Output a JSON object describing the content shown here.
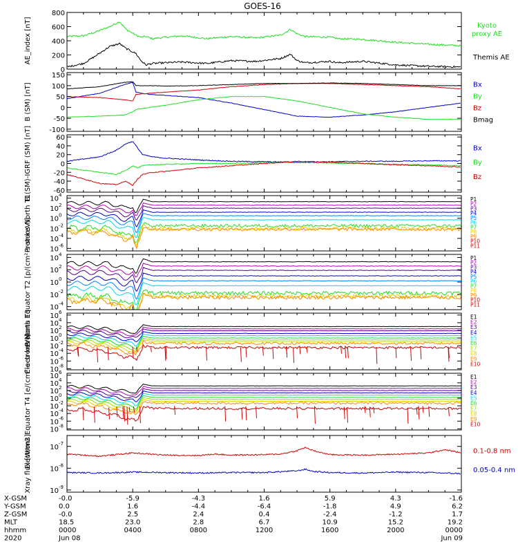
{
  "title": "GOES-16",
  "colors": {
    "black": "#000000",
    "red": "#d00000",
    "green": "#22dd22",
    "blue": "#0000c8",
    "cyan": "#00d8e8",
    "magenta": "#b000b0",
    "purple": "#500090",
    "yellow": "#e0d000",
    "orange": "#ff8800"
  },
  "chart_data": [
    {
      "type": "line",
      "ylabel": "AE_index [nT]",
      "yticks": [
        "800",
        "600",
        "400",
        "200",
        "0"
      ],
      "ylim": [
        0,
        800
      ],
      "scale": "linear",
      "series": [
        {
          "name": "Kyoto proxy AE",
          "color": "#22dd22",
          "x": [
            0,
            1,
            1.7,
            2.6,
            3.2,
            3.6,
            4.2,
            4.5,
            4.8,
            5.2,
            6,
            7,
            8.5,
            10,
            11.5,
            13,
            13.6,
            14,
            14.5,
            16,
            16.5,
            18,
            20,
            22,
            24
          ],
          "y": [
            460,
            470,
            520,
            600,
            670,
            560,
            480,
            450,
            460,
            430,
            450,
            470,
            430,
            460,
            440,
            480,
            560,
            500,
            460,
            450,
            430,
            420,
            380,
            350,
            330
          ]
        },
        {
          "name": "Themis AE",
          "color": "#000000",
          "x": [
            0,
            1,
            1.7,
            2.6,
            3.2,
            3.6,
            4.2,
            4.5,
            4.8,
            5.2,
            6,
            7,
            8.5,
            10,
            11.5,
            13,
            13.6,
            14,
            14.5,
            16,
            16.5,
            18,
            20,
            22,
            24
          ],
          "y": [
            30,
            80,
            180,
            320,
            360,
            290,
            220,
            120,
            60,
            80,
            90,
            100,
            80,
            120,
            110,
            150,
            210,
            120,
            90,
            110,
            90,
            110,
            60,
            40,
            30
          ]
        }
      ],
      "legend": [
        {
          "text": "Kyoto",
          "color": "#22dd22"
        },
        {
          "text": "proxy AE",
          "color": "#22dd22"
        },
        {
          "text": "Themis AE",
          "color": "#000000"
        }
      ]
    },
    {
      "type": "line",
      "ylabel": "B (SM) [nT]",
      "yticks": [
        "150",
        "100",
        "50",
        "0",
        "-50",
        "-100"
      ],
      "ylim": [
        -110,
        160
      ],
      "scale": "linear",
      "series": [
        {
          "name": "Bx",
          "color": "#0000c8",
          "x": [
            0,
            2,
            3.5,
            4,
            4.2,
            5,
            6,
            8,
            10,
            12,
            14,
            16,
            18,
            20,
            22,
            24
          ],
          "y": [
            40,
            65,
            105,
            115,
            70,
            60,
            55,
            45,
            20,
            -10,
            -40,
            -45,
            -35,
            -20,
            0,
            20
          ]
        },
        {
          "name": "By",
          "color": "#22dd22",
          "x": [
            0,
            2,
            3.5,
            4,
            4.2,
            5,
            6,
            8,
            10,
            12,
            14,
            16,
            18,
            20,
            22,
            24
          ],
          "y": [
            -45,
            -40,
            -35,
            -20,
            -10,
            0,
            10,
            35,
            50,
            50,
            30,
            0,
            -30,
            -45,
            -55,
            -55
          ]
        },
        {
          "name": "Bz",
          "color": "#d00000",
          "x": [
            0,
            2,
            3.5,
            4,
            4.2,
            5,
            6,
            8,
            10,
            12,
            14,
            16,
            18,
            20,
            22,
            24
          ],
          "y": [
            50,
            45,
            35,
            30,
            60,
            65,
            70,
            80,
            95,
            105,
            110,
            110,
            105,
            100,
            95,
            85
          ]
        },
        {
          "name": "Bmag",
          "color": "#000000",
          "x": [
            0,
            2,
            3.5,
            4,
            4.2,
            5,
            6,
            8,
            10,
            12,
            14,
            16,
            18,
            20,
            22,
            24
          ],
          "y": [
            85,
            95,
            115,
            118,
            100,
            100,
            98,
            100,
            105,
            110,
            110,
            112,
            110,
            105,
            100,
            100
          ]
        }
      ],
      "legend": [
        {
          "text": "Bx",
          "color": "#0000c8"
        },
        {
          "text": "By",
          "color": "#22dd22"
        },
        {
          "text": "Bz",
          "color": "#d00000"
        },
        {
          "text": "Bmag",
          "color": "#000000"
        }
      ]
    },
    {
      "type": "line",
      "ylabel": "B (SM)-IGRF (SM) [nT]",
      "yticks": [
        "60",
        "40",
        "20",
        "0",
        "-20",
        "-40",
        "-60"
      ],
      "ylim": [
        -65,
        65
      ],
      "scale": "linear",
      "series": [
        {
          "name": "Bx",
          "color": "#0000c8",
          "x": [
            0,
            1,
            2,
            3,
            3.6,
            4,
            4.3,
            4.6,
            5.2,
            6,
            8,
            10,
            12,
            14,
            16,
            18,
            20,
            22,
            24
          ],
          "y": [
            5,
            10,
            15,
            30,
            45,
            50,
            35,
            20,
            15,
            12,
            8,
            5,
            4,
            3,
            4,
            5,
            5,
            6,
            6
          ]
        },
        {
          "name": "By",
          "color": "#22dd22",
          "x": [
            0,
            1,
            2,
            3,
            3.6,
            4,
            4.3,
            4.6,
            5.2,
            6,
            8,
            10,
            12,
            14,
            16,
            18,
            20,
            22,
            24
          ],
          "y": [
            -10,
            -15,
            -20,
            -25,
            -15,
            -5,
            -10,
            -5,
            -3,
            -2,
            0,
            0,
            2,
            2,
            1,
            0,
            -2,
            -3,
            -5
          ]
        },
        {
          "name": "Bz",
          "color": "#d00000",
          "x": [
            0,
            1,
            2,
            3,
            3.6,
            4,
            4.3,
            4.6,
            5.2,
            6,
            8,
            10,
            12,
            14,
            16,
            18,
            20,
            22,
            24
          ],
          "y": [
            -25,
            -35,
            -45,
            -48,
            -40,
            -50,
            -35,
            -25,
            -20,
            -18,
            -10,
            -5,
            0,
            5,
            3,
            0,
            -3,
            -5,
            -8
          ]
        }
      ],
      "legend": [
        {
          "text": "Bx",
          "color": "#0000c8"
        },
        {
          "text": "By",
          "color": "#22dd22"
        },
        {
          "text": "Bz",
          "color": "#d00000"
        }
      ]
    },
    {
      "type": "line",
      "ylabel": "Protons North T1",
      "yticks": [
        "10",
        "10",
        "10",
        "10",
        "10",
        "10"
      ],
      "ytick_exponents": [
        "4",
        "2",
        "0",
        "-2",
        "-4",
        "-6"
      ],
      "ylim": [
        -6.5,
        4.5
      ],
      "scale": "log10",
      "dip_x": [
        2.5,
        3.5,
        4.0,
        4.2,
        4.6
      ],
      "dip_y": [
        -0.5,
        -2.0,
        -1.5,
        -4.0,
        0
      ],
      "series": [
        {
          "name": "P1",
          "color": "#000000",
          "level": 3.3
        },
        {
          "name": "P2",
          "color": "#b000b0",
          "level": 2.6
        },
        {
          "name": "P3",
          "color": "#500090",
          "level": 2.0
        },
        {
          "name": "P4",
          "color": "#0000c8",
          "level": 1.2
        },
        {
          "name": "P5",
          "color": "#0080ff",
          "level": 0.5
        },
        {
          "name": "P6",
          "color": "#00d8e8",
          "level": -0.3
        },
        {
          "name": "P7",
          "color": "#22dd22",
          "level": -1.5
        },
        {
          "name": "P8",
          "color": "#e0d000",
          "level": -2.0
        },
        {
          "name": "P9",
          "color": "#ff8800",
          "level": -2.2
        },
        {
          "name": "P10",
          "color": "#d00000",
          "level": -99
        },
        {
          "name": "P11",
          "color": "#d00000",
          "level": -99
        }
      ]
    },
    {
      "type": "line",
      "ylabel": "Protons Equator T2 [p/(cm²-s-sr-keV)]",
      "yticks": [
        "10",
        "10",
        "10",
        "10",
        "10"
      ],
      "ytick_exponents": [
        "4",
        "2",
        "0",
        "-2",
        "-4"
      ],
      "ylim": [
        -4.5,
        4.5
      ],
      "scale": "log10",
      "dip_x": [
        2.5,
        3.5,
        4.0,
        4.2,
        4.6
      ],
      "dip_y": [
        -0.5,
        -1.8,
        -1.3,
        -3.5,
        0
      ],
      "series": [
        {
          "name": "P1",
          "color": "#000000",
          "level": 3.3
        },
        {
          "name": "P2",
          "color": "#b000b0",
          "level": 2.6
        },
        {
          "name": "P3",
          "color": "#500090",
          "level": 1.9
        },
        {
          "name": "P4",
          "color": "#0000c8",
          "level": 1.0
        },
        {
          "name": "P5",
          "color": "#0080ff",
          "level": 0.2
        },
        {
          "name": "P6",
          "color": "#00d8e8",
          "level": -0.6
        },
        {
          "name": "P7",
          "color": "#22dd22",
          "level": -1.8
        },
        {
          "name": "P8",
          "color": "#e0d000",
          "level": -2.3
        },
        {
          "name": "P9",
          "color": "#ff8800",
          "level": -2.5
        },
        {
          "name": "P10",
          "color": "#d00000",
          "level": -99
        },
        {
          "name": "P11",
          "color": "#d00000",
          "level": -99
        }
      ]
    },
    {
      "type": "line",
      "ylabel": "Electrons North T3",
      "yticks": [
        "10",
        "10",
        "10",
        "10",
        "10",
        "10",
        "10",
        "10"
      ],
      "ytick_exponents": [
        "6",
        "4",
        "2",
        "0",
        "-2",
        "-4",
        "-6",
        "-8"
      ],
      "ylim": [
        -8.3,
        6.5
      ],
      "scale": "log10",
      "dip_x": [
        1.2,
        2.5,
        3.5,
        4.0,
        4.2,
        4.6
      ],
      "dip_y": [
        -0.3,
        -1.0,
        -2.0,
        -2.4,
        -3.0,
        0
      ],
      "series": [
        {
          "name": "E1",
          "color": "#000000",
          "level": 3.0
        },
        {
          "name": "E2",
          "color": "#b000b0",
          "level": 2.4
        },
        {
          "name": "E3",
          "color": "#500090",
          "level": 1.9
        },
        {
          "name": "E4",
          "color": "#0000c8",
          "level": 1.2
        },
        {
          "name": "E5",
          "color": "#00d8e8",
          "level": 0.6
        },
        {
          "name": "E6",
          "color": "#22dd22",
          "level": 0.0
        },
        {
          "name": "E7",
          "color": "#9adf00",
          "level": -0.5
        },
        {
          "name": "E8",
          "color": "#e0d000",
          "level": -0.9
        },
        {
          "name": "E9",
          "color": "#ff8800",
          "level": -1.4
        },
        {
          "name": "E10",
          "color": "#d00000",
          "level": -2.5
        }
      ]
    },
    {
      "type": "line",
      "ylabel": "Electrons Equator T4 [e/(cm²-s-sr-keV)]",
      "yticks": [
        "10",
        "10",
        "10",
        "10",
        "10",
        "10",
        "10",
        "10"
      ],
      "ytick_exponents": [
        "6",
        "4",
        "2",
        "0",
        "-2",
        "-4",
        "-6",
        "-8"
      ],
      "ylim": [
        -8.3,
        6.5
      ],
      "scale": "log10",
      "dip_x": [
        1.2,
        2.5,
        3.5,
        4.0,
        4.2,
        4.6
      ],
      "dip_y": [
        -0.3,
        -1.2,
        -2.2,
        -2.5,
        -3.2,
        0
      ],
      "series": [
        {
          "name": "E1",
          "color": "#000000",
          "level": 3.2
        },
        {
          "name": "E2",
          "color": "#b000b0",
          "level": 2.6
        },
        {
          "name": "E3",
          "color": "#500090",
          "level": 2.0
        },
        {
          "name": "E4",
          "color": "#0000c8",
          "level": 1.4
        },
        {
          "name": "E5",
          "color": "#00d8e8",
          "level": 0.8
        },
        {
          "name": "E6",
          "color": "#22dd22",
          "level": 0.2
        },
        {
          "name": "E7",
          "color": "#9adf00",
          "level": -0.3
        },
        {
          "name": "E8",
          "color": "#e0d000",
          "level": -0.8
        },
        {
          "name": "E9",
          "color": "#ff8800",
          "level": -1.3
        },
        {
          "name": "E10",
          "color": "#d00000",
          "level": -2.7
        }
      ]
    },
    {
      "type": "line",
      "ylabel": "Xray flux [W/m2]",
      "yticks": [
        "10",
        "10",
        "10"
      ],
      "ytick_exponents": [
        "-7",
        "-8",
        "-9"
      ],
      "ylim": [
        -9.1,
        -6.5
      ],
      "scale": "log10",
      "series": [
        {
          "name": "0.1-0.8 nm",
          "color": "#d00000",
          "x": [
            0,
            2,
            4,
            6,
            8,
            9,
            10,
            12,
            13,
            14,
            14.5,
            15,
            16,
            18,
            20,
            22,
            23,
            24
          ],
          "y": [
            -7.35,
            -7.45,
            -7.3,
            -7.4,
            -7.42,
            -7.35,
            -7.4,
            -7.38,
            -7.35,
            -7.2,
            -7.05,
            -7.2,
            -7.38,
            -7.4,
            -7.36,
            -7.3,
            -7.15,
            -7.3
          ]
        },
        {
          "name": "0.05-0.4 nm",
          "color": "#0000c8",
          "x": [
            0,
            2,
            4,
            6,
            8,
            10,
            12,
            14,
            14.5,
            15,
            16,
            18,
            20,
            22,
            24
          ],
          "y": [
            -8.2,
            -8.22,
            -8.18,
            -8.2,
            -8.22,
            -8.2,
            -8.2,
            -8.12,
            -8.05,
            -8.15,
            -8.2,
            -8.22,
            -8.18,
            -8.2,
            -8.25
          ]
        }
      ],
      "legend": [
        {
          "text": "0.1-0.8 nm",
          "color": "#d00000"
        },
        {
          "text": "0.05-0.4 nm",
          "color": "#0000c8"
        }
      ]
    }
  ],
  "footer": {
    "rows": [
      {
        "label": "X-GSM",
        "values": [
          "-0.0",
          "-5.9",
          "-4.3",
          "1.6",
          "5.9",
          "4.3",
          "-1.6"
        ]
      },
      {
        "label": "Y-GSM",
        "values": [
          "0.0",
          "1.6",
          "-4.4",
          "-6.4",
          "-1.8",
          "4.9",
          "6.2"
        ]
      },
      {
        "label": "Z-GSM",
        "values": [
          "-0.0",
          "2.5",
          "2.4",
          "0.4",
          "-2.4",
          "-1.2",
          "1.7"
        ]
      },
      {
        "label": "MLT",
        "values": [
          "18.5",
          "23.0",
          "2.8",
          "6.7",
          "10.9",
          "15.2",
          "19.2"
        ]
      },
      {
        "label": "hhmm",
        "values": [
          "0000",
          "0400",
          "0800",
          "1200",
          "1600",
          "2000",
          "0000"
        ]
      },
      {
        "label": "2020",
        "values": [
          "Jun 08",
          "",
          "",
          "",
          "",
          "",
          "Jun 09"
        ]
      }
    ]
  }
}
